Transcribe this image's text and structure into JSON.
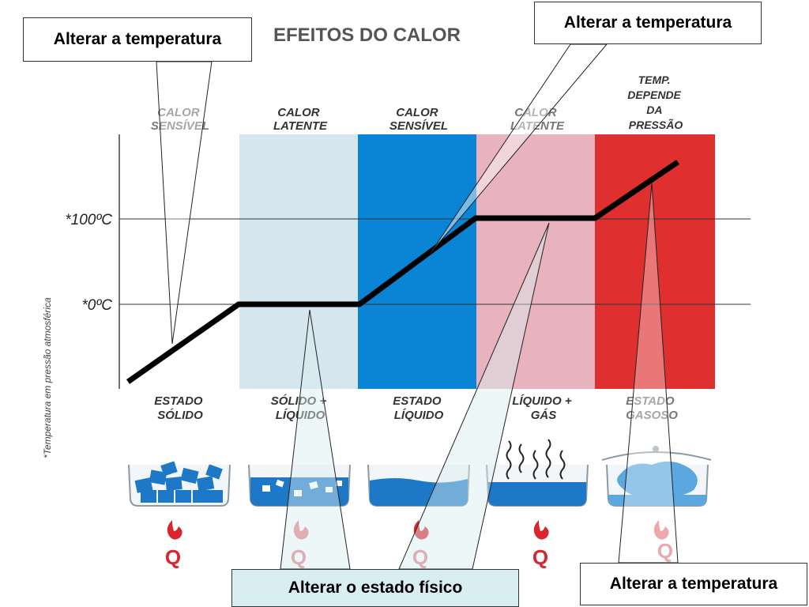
{
  "title": "EFEITOS DO CALOR",
  "y_axis_label": "*Temperatura em pressão atmosférica",
  "y_ticks": [
    "*100ºC",
    "*0ºC"
  ],
  "zones": [
    {
      "header": [
        "CALOR",
        "SENSÍVEL"
      ],
      "state": [
        "ESTADO",
        "SÓLIDO"
      ],
      "color": "#ffffff"
    },
    {
      "header": [
        "CALOR",
        "LATENTE"
      ],
      "state": [
        "SÓLIDO +",
        "LÍQUIDO"
      ],
      "color": "#d6e6ee"
    },
    {
      "header": [
        "CALOR",
        "SENSÍVEL"
      ],
      "state": [
        "ESTADO",
        "LÍQUIDO"
      ],
      "color": "#0a85d6"
    },
    {
      "header": [
        "CALOR",
        "LATENTE"
      ],
      "state": [
        "LÍQUIDO +",
        "GÁS"
      ],
      "color": "#e8b3be"
    },
    {
      "header": [
        "TEMP.",
        "DEPENDE",
        "DA",
        "PRESSÃO"
      ],
      "state": [
        "ESTADO",
        "GASOSO"
      ],
      "color": "#df2f2f"
    }
  ],
  "heat_symbol": "Q",
  "callouts": {
    "top_left": "Alterar a temperatura",
    "top_right": "Alterar a temperatura",
    "bottom_right": "Alterar a temperatura",
    "bottom_center": "Alterar o estado físico"
  },
  "icons": [
    "ice-cubes-icon",
    "melting-ice-icon",
    "water-icon",
    "boiling-water-icon",
    "steam-icon",
    "flame-icon"
  ]
}
